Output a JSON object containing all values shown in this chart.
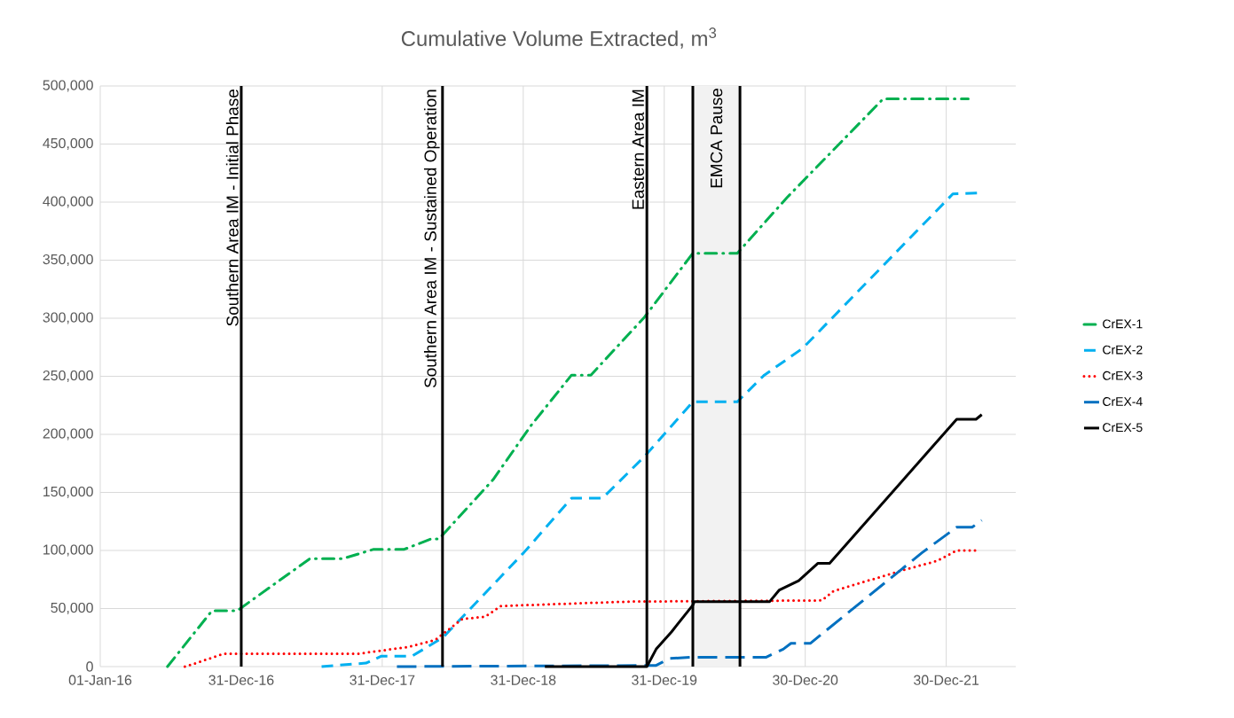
{
  "chart_data": {
    "type": "line",
    "title": "Cumulative Volume Extracted, m$^{3}$",
    "xlim": [
      "2016-01-01",
      "2022-06-28"
    ],
    "xticks": [
      {
        "value": "2016-01-01",
        "label": "01-Jan-16"
      },
      {
        "value": "2016-12-31",
        "label": "31-Dec-16"
      },
      {
        "value": "2017-12-31",
        "label": "31-Dec-17"
      },
      {
        "value": "2018-12-31",
        "label": "31-Dec-18"
      },
      {
        "value": "2019-12-31",
        "label": "31-Dec-19"
      },
      {
        "value": "2020-12-30",
        "label": "30-Dec-20"
      },
      {
        "value": "2021-12-30",
        "label": "30-Dec-21"
      }
    ],
    "ylim": [
      0,
      500000
    ],
    "yticks": [
      0,
      {
        "value": 50000,
        "label": "50,000"
      },
      {
        "value": 100000,
        "label": "100,000"
      },
      {
        "value": 150000,
        "label": "150,000"
      },
      {
        "value": 200000,
        "label": "200,000"
      },
      {
        "value": 250000,
        "label": "250,000"
      },
      {
        "value": 300000,
        "label": "300,000"
      },
      {
        "value": 350000,
        "label": "350,000"
      },
      {
        "value": 400000,
        "label": "400,000"
      },
      {
        "value": 450000,
        "label": "450,000"
      },
      {
        "value": 500000,
        "label": "500,000"
      }
    ],
    "grid": true,
    "legend": "right",
    "marker": "none",
    "series": [
      {
        "name": "CrEX-1",
        "color": "#00b050",
        "line_style": "dashdot",
        "x": [
          "2016-06-23",
          "2016-10-16",
          "2016-12-20",
          "2017-06-27",
          "2017-09-20",
          "2017-12-09",
          "2018-02-26",
          "2018-05-07",
          "2018-05-27",
          "2018-10-14",
          "2019-01-21",
          "2019-05-05",
          "2019-06-24",
          "2019-11-10",
          "2020-03-14",
          "2020-07-07",
          "2020-11-13",
          "2021-07-20",
          "2022-02-25"
        ],
        "values": [
          0,
          48000,
          48000,
          93000,
          93000,
          101000,
          101000,
          110000,
          110000,
          161000,
          208000,
          251000,
          251000,
          301000,
          356000,
          356000,
          404000,
          489000,
          489000
        ]
      },
      {
        "name": "CrEX-2",
        "color": "#00b0f0",
        "line_style": "dashed",
        "x": [
          "2017-07-27",
          "2017-11-19",
          "2017-12-29",
          "2018-03-18",
          "2018-06-06",
          "2019-01-01",
          "2019-05-05",
          "2019-07-24",
          "2019-11-10",
          "2020-03-14",
          "2020-07-07",
          "2020-09-15",
          "2020-12-23",
          "2022-01-16",
          "2022-03-27"
        ],
        "values": [
          0,
          3000,
          9000,
          9000,
          25000,
          98000,
          145000,
          145000,
          181000,
          228000,
          228000,
          251000,
          274000,
          407000,
          408000
        ]
      },
      {
        "name": "CrEX-3",
        "color": "#ff0000",
        "line_style": "dotted",
        "x": [
          "2016-08-07",
          "2016-08-27",
          "2016-11-15",
          "2017-10-29",
          "2018-03-09",
          "2018-05-17",
          "2018-07-26",
          "2018-09-24",
          "2018-11-02",
          "2019-01-12",
          "2019-10-02",
          "2021-02-11",
          "2021-03-13",
          "2021-08-29",
          "2021-12-06",
          "2022-01-26",
          "2022-03-17"
        ],
        "values": [
          0,
          2000,
          11000,
          11000,
          17000,
          23000,
          41000,
          43000,
          52000,
          53000,
          56000,
          57000,
          65000,
          82000,
          91000,
          100000,
          100000
        ]
      },
      {
        "name": "CrEX-4",
        "color": "#0070c0",
        "line_style": "longdash",
        "x": [
          "2018-02-07",
          "2019-12-10",
          "2020-01-14",
          "2020-03-09",
          "2020-09-19",
          "2020-11-03",
          "2020-11-23",
          "2021-01-12",
          "2021-10-28",
          "2022-01-26",
          "2022-03-07",
          "2022-04-01"
        ],
        "values": [
          0,
          1000,
          7000,
          8000,
          8000,
          15000,
          20000,
          20000,
          98000,
          120000,
          120000,
          126000
        ]
      },
      {
        "name": "CrEX-5",
        "color": "#000000",
        "line_style": "solid",
        "x": [
          "2019-02-25",
          "2019-11-16",
          "2019-12-10",
          "2020-01-19",
          "2020-03-14",
          "2020-03-18",
          "2020-09-29",
          "2020-10-24",
          "2020-12-13",
          "2021-02-01",
          "2021-03-03",
          "2022-01-26",
          "2022-03-17",
          "2022-04-01"
        ],
        "values": [
          0,
          0,
          15000,
          30000,
          53000,
          56000,
          56000,
          66000,
          74000,
          89000,
          89000,
          213000,
          213000,
          217000
        ]
      }
    ],
    "ref_lines": [
      {
        "axis": "x",
        "value": "2016-12-31",
        "label": "Southern Area IM - Initial Phase",
        "color": "#000000"
      },
      {
        "axis": "x",
        "value": "2018-06-05",
        "label": "Southern Area IM - Sustained Operation",
        "color": "#000000"
      },
      {
        "axis": "x",
        "value": "2019-11-16",
        "label": "Eastern Area IM",
        "color": "#000000"
      },
      {
        "axis": "x",
        "value": "2020-03-14",
        "color": "#000000"
      },
      {
        "axis": "x",
        "value": "2020-07-14",
        "color": "#000000"
      }
    ],
    "bands": [
      {
        "axis": "x",
        "from": "2020-03-14",
        "to": "2020-07-14",
        "label": "EMCA Pause",
        "color": "#f2f2f2"
      }
    ]
  }
}
